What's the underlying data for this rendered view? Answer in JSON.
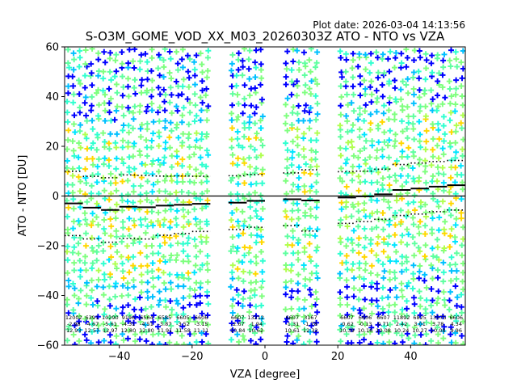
{
  "chart_data": {
    "type": "scatter",
    "title": "S-O3M_GOME_VOD_XX_M03_20260303Z ATO - NTO vs VZA",
    "plot_date": "Plot date: 2026-03-04 14:13:56",
    "xlabel": "VZA [degree]",
    "ylabel": "ATO - NTO [DU]",
    "xlim": [
      -55,
      55
    ],
    "ylim": [
      -60,
      60
    ],
    "xticks": [
      -40,
      -20,
      0,
      20,
      40
    ],
    "yticks": [
      -60,
      -40,
      -20,
      0,
      20,
      40,
      60
    ],
    "zero_line": 0,
    "bins": [
      {
        "x": -52.5,
        "n": "12002",
        "mean": -2.98,
        "sd": 12.93
      },
      {
        "x": -47.5,
        "n": "6391",
        "mean": -4.67,
        "sd": 12.57
      },
      {
        "x": -42.5,
        "n": "10290",
        "mean": -5.61,
        "sd": 12.97
      },
      {
        "x": -37.5,
        "n": "9196",
        "mean": -4.31,
        "sd": 12.8
      },
      {
        "x": -32.5,
        "n": "6564",
        "mean": -4.51,
        "sd": 12.8
      },
      {
        "x": -27.5,
        "n": "6585",
        "mean": -3.87,
        "sd": 11.91
      },
      {
        "x": -22.5,
        "n": "6605",
        "mean": -3.52,
        "sd": 11.58
      },
      {
        "x": -17.5,
        "n": "6606",
        "mean": -3.15,
        "sd": 11.11
      },
      {
        "x": -7.5,
        "n": "6607",
        "mean": -2.67,
        "sd": 10.84
      },
      {
        "x": -2.5,
        "n": "13212",
        "mean": -1.94,
        "sd": 10.62
      },
      {
        "x": 7.5,
        "n": "6607",
        "mean": -1.31,
        "sd": 10.61
      },
      {
        "x": 12.5,
        "n": "3167",
        "mean": -1.78,
        "sd": 12.32
      },
      {
        "x": 22.5,
        "n": "6607",
        "mean": -0.62,
        "sd": 10.39
      },
      {
        "x": 27.5,
        "n": "6606",
        "mean": -0.13,
        "sd": 10.16
      },
      {
        "x": 32.5,
        "n": "6607",
        "mean": 0.71,
        "sd": 10.08
      },
      {
        "x": 37.5,
        "n": "11892",
        "mean": 2.42,
        "sd": 10.24
      },
      {
        "x": 42.5,
        "n": "6825",
        "mean": 3.01,
        "sd": 10.27
      },
      {
        "x": 47.5,
        "n": "13575",
        "mean": 3.78,
        "sd": 10.08
      },
      {
        "x": 52.5,
        "n": "6606",
        "mean": 4.34,
        "sd": 9.96
      }
    ],
    "colors": {
      "mean": "#000000",
      "std": "#000000",
      "scatter_palette": [
        "#7fff7f",
        "#5fffa0",
        "#30ffd0",
        "#00e5ff",
        "#b0ff50",
        "#ffd700",
        "#00c0ff",
        "#0000ff"
      ]
    }
  }
}
